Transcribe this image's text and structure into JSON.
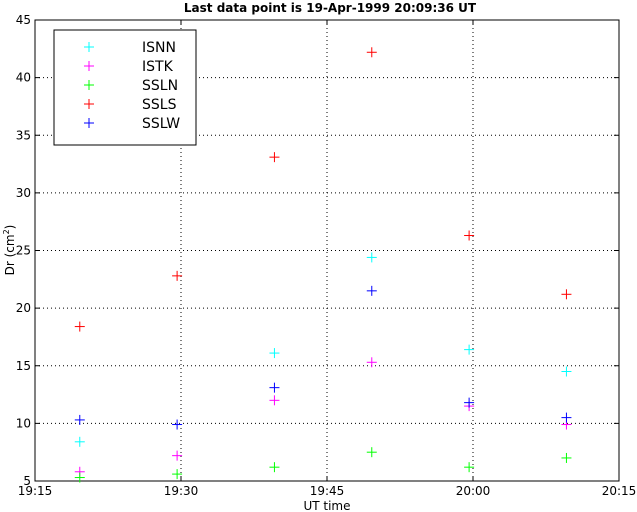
{
  "chart_data": {
    "type": "scatter",
    "title": "Last data point is 19-Apr-1999 20:09:36 UT",
    "xlabel": "UT time",
    "ylabel": "Dr (cm",
    "ylabel_sup": "2",
    "ylabel_close": ")",
    "xlim": [
      "19:15",
      "20:15"
    ],
    "ylim": [
      5,
      45
    ],
    "x_ticks": [
      "19:15",
      "19:30",
      "19:45",
      "20:00",
      "20:15"
    ],
    "y_ticks": [
      5,
      10,
      15,
      20,
      25,
      30,
      35,
      40,
      45
    ],
    "grid": true,
    "legend_position": "top-left",
    "series": [
      {
        "name": "ISNN",
        "color": "#00ffff",
        "x": [
          "19:19:36",
          "19:29:36",
          "19:39:36",
          "19:49:36",
          "19:59:36",
          "20:09:36"
        ],
        "y": [
          8.4,
          null,
          16.1,
          24.4,
          16.4,
          14.5
        ]
      },
      {
        "name": "ISTK",
        "color": "#ff00ff",
        "x": [
          "19:19:36",
          "19:29:36",
          "19:39:36",
          "19:49:36",
          "19:59:36",
          "20:09:36"
        ],
        "y": [
          5.8,
          7.2,
          12.0,
          15.3,
          11.5,
          9.9
        ]
      },
      {
        "name": "SSLN",
        "color": "#00ff00",
        "x": [
          "19:19:36",
          "19:29:36",
          "19:39:36",
          "19:49:36",
          "19:59:36",
          "20:09:36"
        ],
        "y": [
          5.3,
          5.6,
          6.2,
          7.5,
          6.2,
          7.0
        ]
      },
      {
        "name": "SSLS",
        "color": "#ff0000",
        "x": [
          "19:19:36",
          "19:29:36",
          "19:39:36",
          "19:49:36",
          "19:59:36",
          "20:09:36"
        ],
        "y": [
          18.4,
          22.8,
          33.1,
          42.2,
          26.3,
          21.2
        ]
      },
      {
        "name": "SSLW",
        "color": "#0000ff",
        "x": [
          "19:19:36",
          "19:29:36",
          "19:39:36",
          "19:49:36",
          "19:59:36",
          "20:09:36"
        ],
        "y": [
          10.3,
          9.9,
          13.1,
          21.5,
          11.8,
          10.5
        ]
      }
    ]
  }
}
